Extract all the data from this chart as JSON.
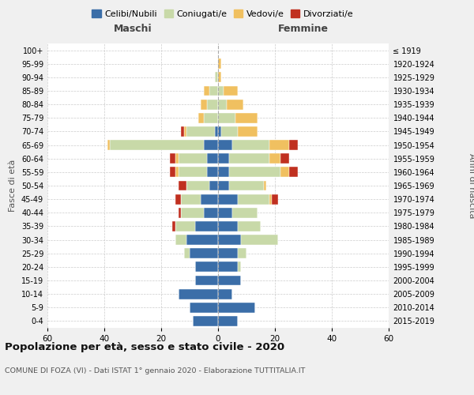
{
  "age_groups": [
    "0-4",
    "5-9",
    "10-14",
    "15-19",
    "20-24",
    "25-29",
    "30-34",
    "35-39",
    "40-44",
    "45-49",
    "50-54",
    "55-59",
    "60-64",
    "65-69",
    "70-74",
    "75-79",
    "80-84",
    "85-89",
    "90-94",
    "95-99",
    "100+"
  ],
  "birth_years": [
    "2015-2019",
    "2010-2014",
    "2005-2009",
    "2000-2004",
    "1995-1999",
    "1990-1994",
    "1985-1989",
    "1980-1984",
    "1975-1979",
    "1970-1974",
    "1965-1969",
    "1960-1964",
    "1955-1959",
    "1950-1954",
    "1945-1949",
    "1940-1944",
    "1935-1939",
    "1930-1934",
    "1925-1929",
    "1920-1924",
    "≤ 1919"
  ],
  "males": {
    "celibi": [
      9,
      10,
      14,
      8,
      8,
      10,
      11,
      8,
      5,
      6,
      3,
      4,
      4,
      5,
      1,
      0,
      0,
      0,
      0,
      0,
      0
    ],
    "coniugati": [
      0,
      0,
      0,
      0,
      0,
      2,
      4,
      7,
      8,
      7,
      8,
      10,
      10,
      33,
      10,
      5,
      4,
      3,
      1,
      0,
      0
    ],
    "vedovi": [
      0,
      0,
      0,
      0,
      0,
      0,
      0,
      0,
      0,
      0,
      0,
      1,
      1,
      1,
      1,
      2,
      2,
      2,
      0,
      0,
      0
    ],
    "divorziati": [
      0,
      0,
      0,
      0,
      0,
      0,
      0,
      1,
      1,
      2,
      3,
      2,
      2,
      0,
      1,
      0,
      0,
      0,
      0,
      0,
      0
    ]
  },
  "females": {
    "nubili": [
      7,
      13,
      5,
      8,
      7,
      7,
      8,
      7,
      5,
      7,
      4,
      4,
      4,
      5,
      1,
      0,
      0,
      0,
      0,
      0,
      0
    ],
    "coniugate": [
      0,
      0,
      0,
      0,
      1,
      3,
      13,
      8,
      9,
      11,
      12,
      18,
      14,
      13,
      6,
      6,
      3,
      2,
      0,
      0,
      0
    ],
    "vedove": [
      0,
      0,
      0,
      0,
      0,
      0,
      0,
      0,
      0,
      1,
      1,
      3,
      4,
      7,
      7,
      8,
      6,
      5,
      1,
      1,
      0
    ],
    "divorziate": [
      0,
      0,
      0,
      0,
      0,
      0,
      0,
      0,
      0,
      2,
      0,
      3,
      3,
      3,
      0,
      0,
      0,
      0,
      0,
      0,
      0
    ]
  },
  "colors": {
    "celibi": "#3B6EA8",
    "coniugati": "#C8D9A8",
    "vedovi": "#F0C060",
    "divorziati": "#C03020"
  },
  "legend_labels": [
    "Celibi/Nubili",
    "Coniugati/e",
    "Vedovi/e",
    "Divorziati/e"
  ],
  "title": "Popolazione per età, sesso e stato civile - 2020",
  "subtitle": "COMUNE DI FOZA (VI) - Dati ISTAT 1° gennaio 2020 - Elaborazione TUTTITALIA.IT",
  "xlabel_left": "Maschi",
  "xlabel_right": "Femmine",
  "ylabel_left": "Fasce di età",
  "ylabel_right": "Anni di nascita",
  "xlim": 60,
  "bg_color": "#f0f0f0",
  "plot_bg": "#ffffff"
}
